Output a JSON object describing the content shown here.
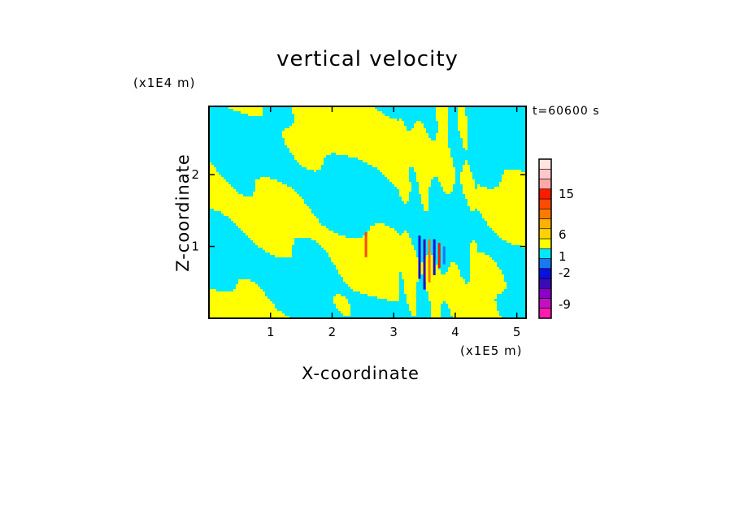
{
  "chart_data": {
    "type": "heatmap",
    "title": "vertical velocity",
    "xlabel": "X-coordinate",
    "ylabel": "Z-coordinate",
    "x_unit_label": "(x1E5 m)",
    "y_unit_label": "(x1E4 m)",
    "time_label": "t=60600 s",
    "xlim": [
      0,
      5.15
    ],
    "ylim": [
      0,
      2.95
    ],
    "x_ticks": [
      1,
      2,
      3,
      4,
      5
    ],
    "y_ticks": [
      1,
      2
    ],
    "colorbar": {
      "tick_labels": [
        "15",
        "6",
        "1",
        "-2",
        "-9"
      ],
      "levels": [
        {
          "color": "#ff1ab0"
        },
        {
          "color": "#c010c0"
        },
        {
          "color": "#8a00c8"
        },
        {
          "color": "#3a0ab8"
        },
        {
          "color": "#0a10e0"
        },
        {
          "color": "#1a78f0"
        },
        {
          "color": "#00e8ff"
        },
        {
          "color": "#ffff00"
        },
        {
          "color": "#ffd200"
        },
        {
          "color": "#ffb000"
        },
        {
          "color": "#ff7800"
        },
        {
          "color": "#ff4a00"
        },
        {
          "color": "#ff1a00"
        },
        {
          "color": "#ffa8a8"
        },
        {
          "color": "#ffc8c8"
        },
        {
          "color": "#ffe4e0"
        }
      ]
    },
    "field_colors": {
      "positive": "#ffff00",
      "negative": "#00e8ff"
    }
  }
}
